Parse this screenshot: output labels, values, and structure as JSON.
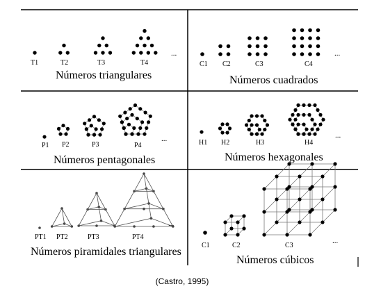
{
  "panels": {
    "triangular": {
      "title": "Números triangulares",
      "labels": [
        "T1",
        "T2",
        "T3",
        "T4"
      ],
      "ellipsis": "..."
    },
    "square": {
      "title": "Números cuadrados",
      "labels": [
        "C1",
        "C2",
        "C3",
        "C4"
      ],
      "ellipsis": "..."
    },
    "pentagonal": {
      "title": "Números pentagonales",
      "labels": [
        "P1",
        "P2",
        "P3",
        "P4"
      ],
      "ellipsis": "..."
    },
    "hexagonal": {
      "title": "Números hexagonales",
      "labels": [
        "H1",
        "H2",
        "H3",
        "H4"
      ],
      "ellipsis": "..."
    },
    "pyramidal": {
      "title": "Números piramidales triangulares",
      "labels": [
        "PT1",
        "PT2",
        "PT3",
        "PT4"
      ],
      "ellipsis": "..."
    },
    "cubic": {
      "title": "Números cúbicos",
      "labels": [
        "C1",
        "C2",
        "C3"
      ],
      "ellipsis": "..."
    }
  },
  "caption": "(Castro, 1995)"
}
